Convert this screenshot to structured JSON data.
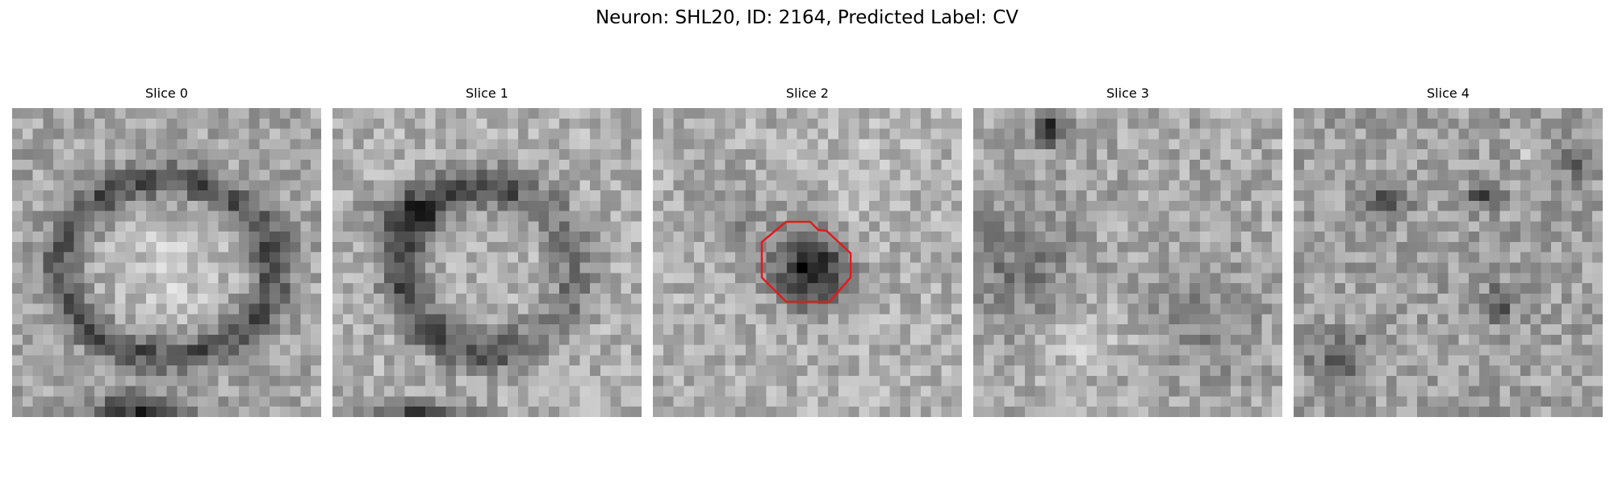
{
  "figure": {
    "title": "Neuron: SHL20, ID: 2164, Predicted Label: CV"
  },
  "slices": [
    {
      "label": "Slice 0",
      "pattern": "bright-cell-with-dark-ring",
      "seed": 11
    },
    {
      "label": "Slice 1",
      "pattern": "dark-ring-upper-left",
      "seed": 23
    },
    {
      "label": "Slice 2",
      "pattern": "dark-blob-center",
      "seed": 37,
      "roi_outline": true
    },
    {
      "label": "Slice 3",
      "pattern": "diffuse-noise",
      "seed": 51
    },
    {
      "label": "Slice 4",
      "pattern": "diffuse-noise-dark-spots",
      "seed": 67
    }
  ],
  "colors": {
    "roi_outline": "#e31a1c",
    "background": "#ffffff"
  }
}
